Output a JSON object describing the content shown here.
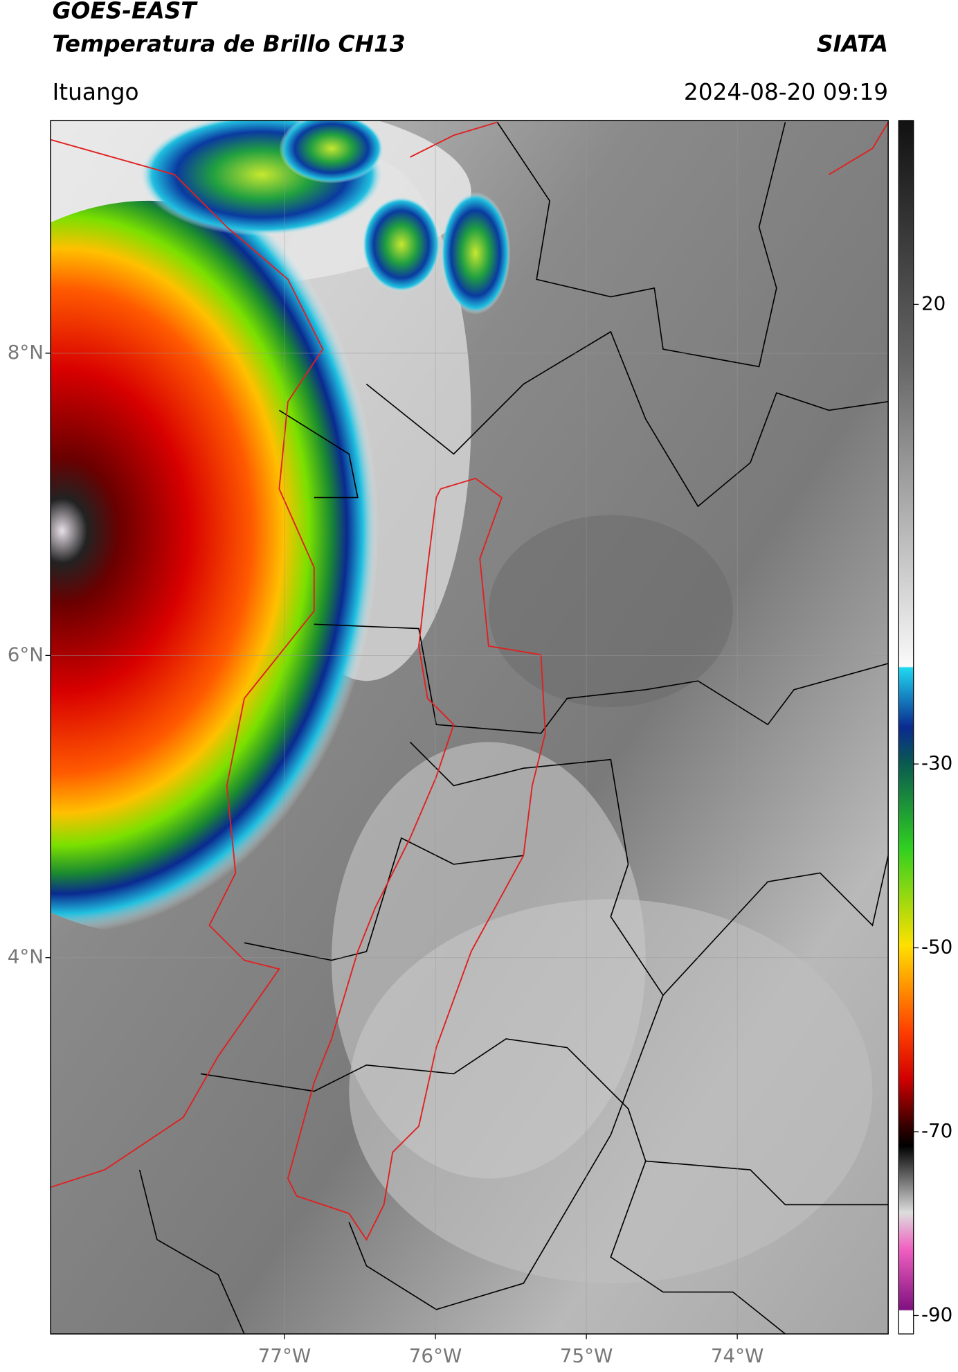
{
  "map": {
    "title": "GOES-EAST",
    "subtitle": "Temperatura de Brillo CH13",
    "source": "SIATA",
    "location": "Ituango",
    "timestamp": "2024-08-20 09:19",
    "xlim": [
      -78.55,
      -73.0
    ],
    "ylim": [
      1.51,
      9.54
    ],
    "xticks": [
      {
        "value": -77,
        "label": "77°W"
      },
      {
        "value": -76,
        "label": "76°W"
      },
      {
        "value": -75,
        "label": "75°W"
      },
      {
        "value": -74,
        "label": "74°W"
      }
    ],
    "yticks": [
      {
        "value": 8,
        "label": "8°N"
      },
      {
        "value": 6,
        "label": "6°N"
      },
      {
        "value": 4,
        "label": "4°N"
      }
    ],
    "colorbar": {
      "lim": [
        -92,
        40
      ],
      "ticks": [
        20,
        -30,
        -50,
        -70,
        -90
      ]
    }
  }
}
